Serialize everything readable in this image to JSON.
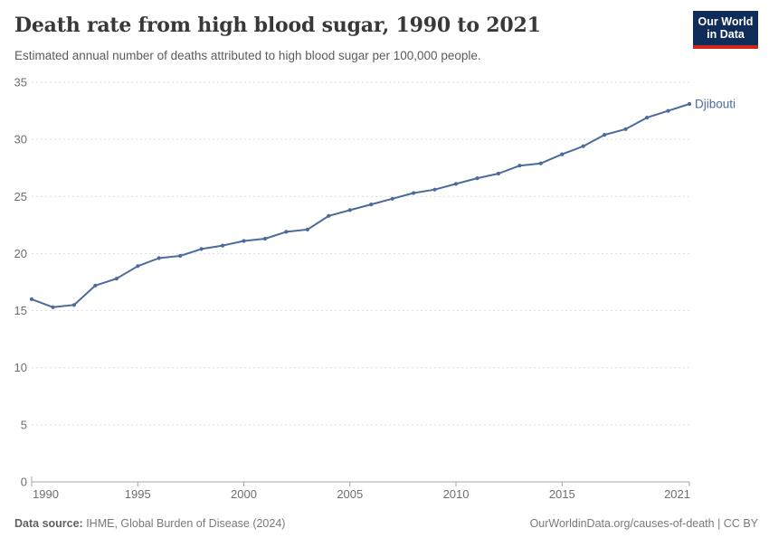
{
  "header": {
    "title": "Death rate from high blood sugar, 1990 to 2021",
    "subtitle": "Estimated annual number of deaths attributed to high blood sugar per 100,000 people.",
    "logo": {
      "line1": "Our World",
      "line2": "in Data",
      "bg_color": "#102d59",
      "accent_color": "#d0271d",
      "text_color": "#ffffff"
    }
  },
  "chart_data": {
    "type": "line",
    "title": "Death rate from high blood sugar, 1990 to 2021",
    "xlabel": "",
    "ylabel": "",
    "xlim": [
      1990,
      2021
    ],
    "ylim": [
      0,
      35
    ],
    "x_ticks": [
      1990,
      1995,
      2000,
      2005,
      2010,
      2015,
      2021
    ],
    "y_ticks": [
      0,
      5,
      10,
      15,
      20,
      25,
      30,
      35
    ],
    "grid": "dashed-horizontal",
    "legend_position": "end-of-line-label",
    "series": [
      {
        "name": "Djibouti",
        "color": "#4C6A9C",
        "x": [
          1990,
          1991,
          1992,
          1993,
          1994,
          1995,
          1996,
          1997,
          1998,
          1999,
          2000,
          2001,
          2002,
          2003,
          2004,
          2005,
          2006,
          2007,
          2008,
          2009,
          2010,
          2011,
          2012,
          2013,
          2014,
          2015,
          2016,
          2017,
          2018,
          2019,
          2020,
          2021
        ],
        "values": [
          16.0,
          15.3,
          15.5,
          17.2,
          17.8,
          18.9,
          19.6,
          19.8,
          20.4,
          20.7,
          21.1,
          21.3,
          21.9,
          22.1,
          23.3,
          23.8,
          24.3,
          24.8,
          25.3,
          25.6,
          26.1,
          26.6,
          27.0,
          27.7,
          27.9,
          28.7,
          29.4,
          30.4,
          30.9,
          31.9,
          32.5,
          33.1
        ]
      }
    ],
    "end_label": "Djibouti",
    "axis_text_color": "#6e6e6e",
    "grid_color": "#dcdcdc",
    "axis_line_color": "#a6a6a6"
  },
  "footer": {
    "source_label": "Data source:",
    "source_text": " IHME, Global Burden of Disease (2024)",
    "right_text": "OurWorldinData.org/causes-of-death | CC BY"
  }
}
